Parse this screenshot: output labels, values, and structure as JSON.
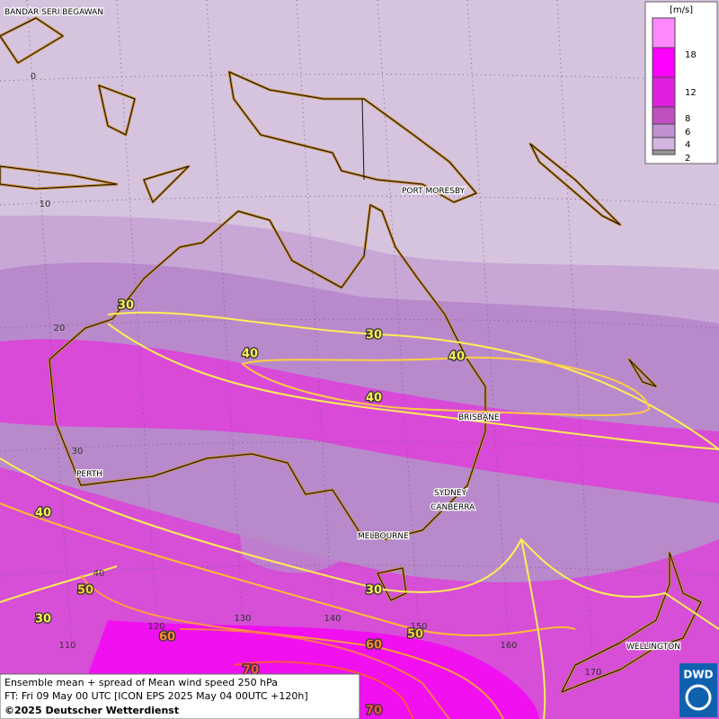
{
  "map": {
    "place_labels": [
      "BANDAR SERI BEGAWAN",
      "PORT MORESBY",
      "BRISBANE",
      "PERTH",
      "SYDNEY",
      "CANBERRA",
      "MELBOURNE",
      "WELLINGTON"
    ],
    "latitude_labels": [
      0,
      10,
      20,
      30,
      40
    ],
    "longitude_labels": [
      110,
      120,
      130,
      140,
      150,
      160,
      170
    ],
    "contour_labels": [
      30,
      30,
      40,
      40,
      40,
      40,
      50,
      30,
      30,
      60,
      50,
      60,
      70,
      70
    ]
  },
  "legend": {
    "unit": "[m/s]",
    "levels": [
      18,
      12,
      8,
      6,
      4,
      2
    ]
  },
  "footer": {
    "lines": [
      "Ensemble mean + spread of Mean wind speed 250 hPa",
      "FT: Fri 09 May 00 UTC [ICON EPS 2025 May 04 00UTC +120h]",
      "©2025 Deutscher Wetterdienst"
    ]
  },
  "logo": "DWD"
}
